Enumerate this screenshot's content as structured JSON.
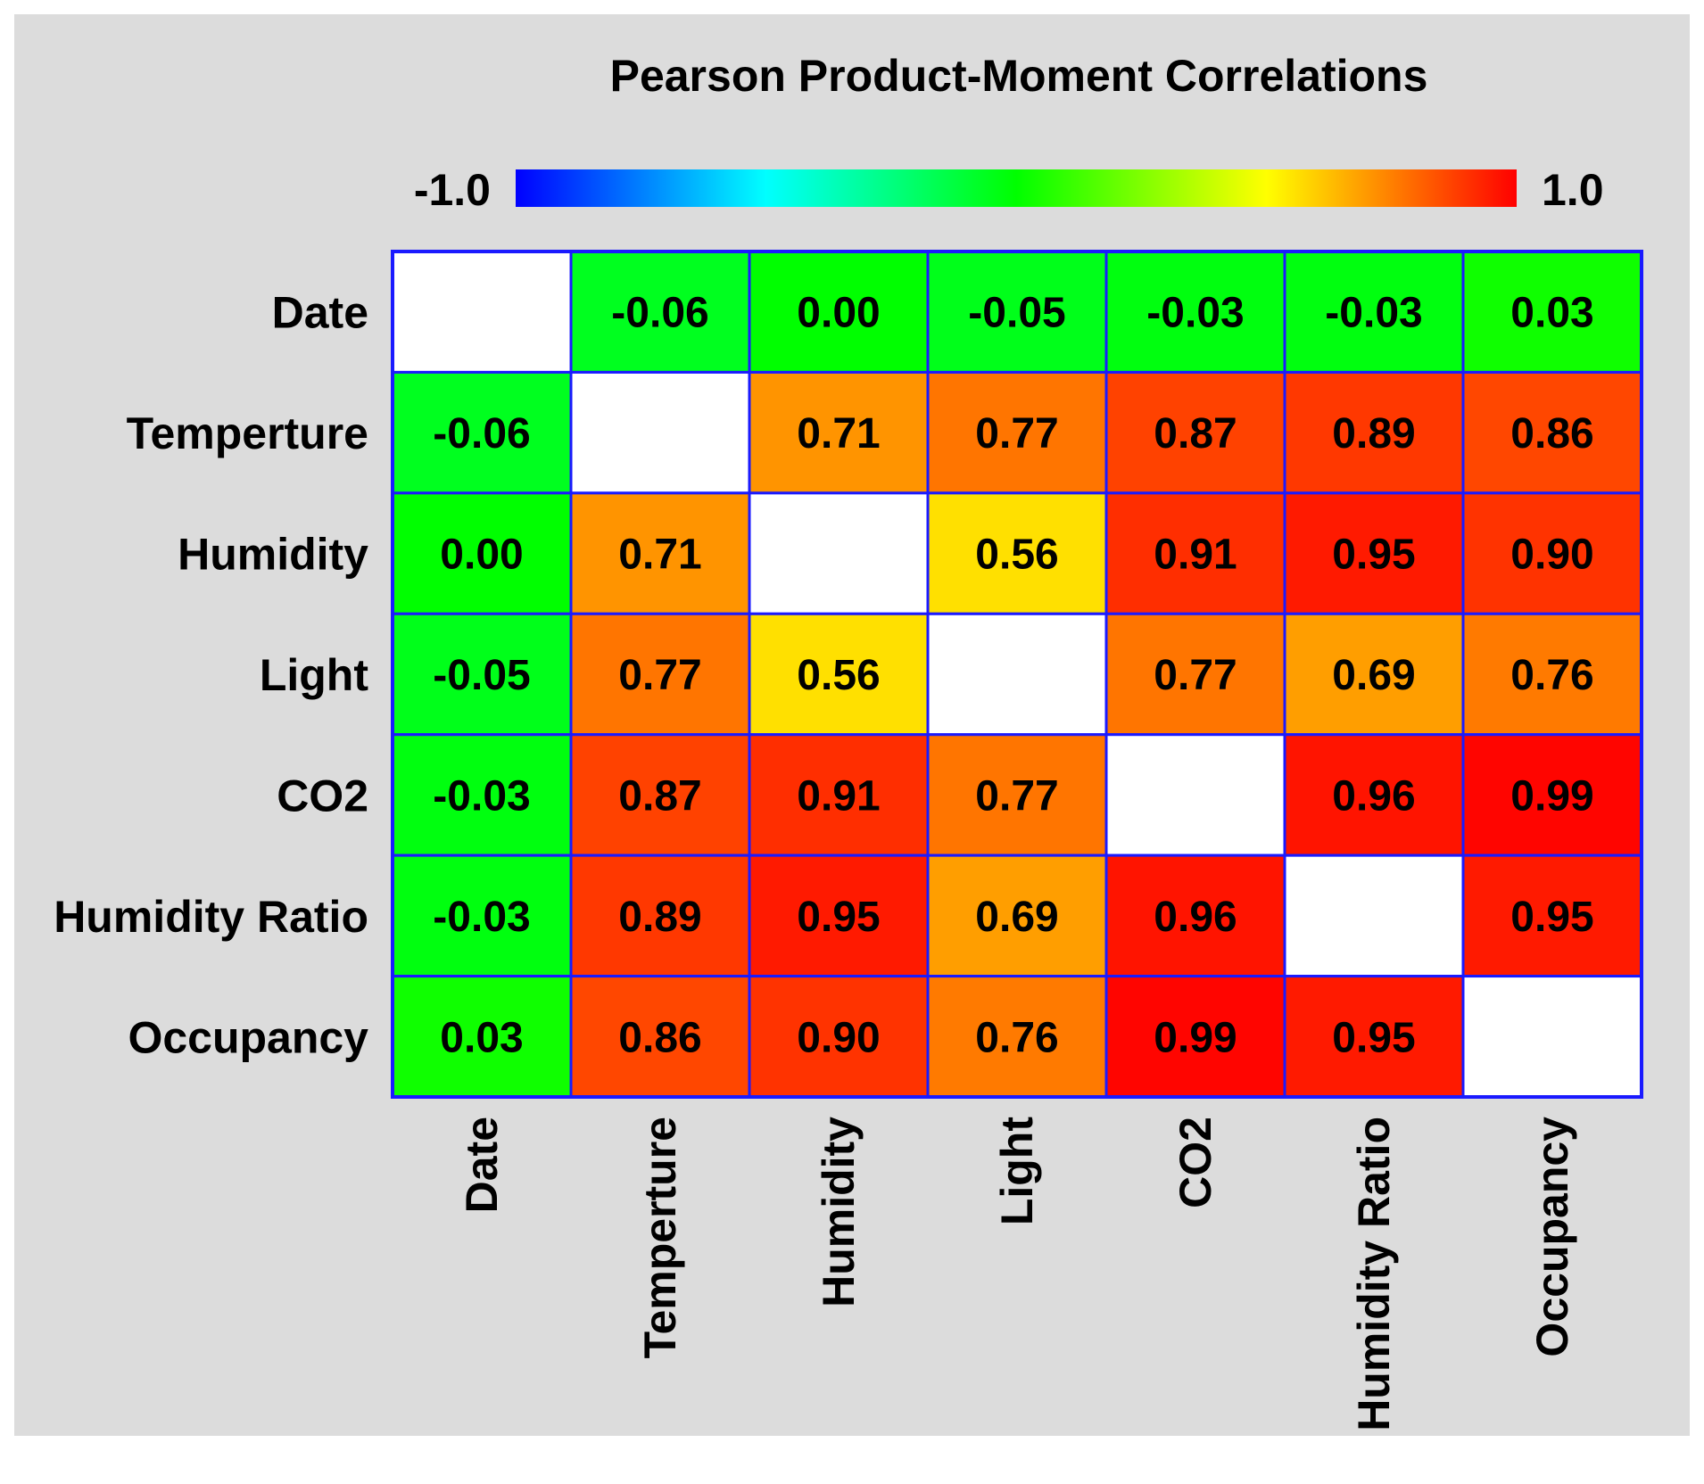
{
  "chart_data": {
    "type": "heatmap",
    "title": "Pearson Product-Moment Correlations",
    "colorbar": {
      "min_label": "-1.0",
      "max_label": "1.0",
      "min": -1.0,
      "max": 1.0,
      "stops": [
        {
          "value": -1.0,
          "color": "#0000ff"
        },
        {
          "value": -0.5,
          "color": "#00ffff"
        },
        {
          "value": 0.0,
          "color": "#00ff00"
        },
        {
          "value": 0.5,
          "color": "#ffff00"
        },
        {
          "value": 1.0,
          "color": "#ff0000"
        }
      ]
    },
    "row_labels": [
      "Date",
      "Temperture",
      "Humidity",
      "Light",
      "CO2",
      "Humidity Ratio",
      "Occupancy"
    ],
    "column_labels": [
      "Date",
      "Temperture",
      "Humidity",
      "Light",
      "CO2",
      "Humidity Ratio",
      "Occupancy"
    ],
    "values": [
      [
        null,
        -0.06,
        0.0,
        -0.05,
        -0.03,
        -0.03,
        0.03
      ],
      [
        -0.06,
        null,
        0.71,
        0.77,
        0.87,
        0.89,
        0.86
      ],
      [
        0.0,
        0.71,
        null,
        0.56,
        0.91,
        0.95,
        0.9
      ],
      [
        -0.05,
        0.77,
        0.56,
        null,
        0.77,
        0.69,
        0.76
      ],
      [
        -0.03,
        0.87,
        0.91,
        0.77,
        null,
        0.96,
        0.99
      ],
      [
        -0.03,
        0.89,
        0.95,
        0.69,
        0.96,
        null,
        0.95
      ],
      [
        0.03,
        0.86,
        0.9,
        0.76,
        0.99,
        0.95,
        null
      ]
    ],
    "value_labels": [
      [
        "",
        "-0.06",
        "0.00",
        "-0.05",
        "-0.03",
        "-0.03",
        "0.03"
      ],
      [
        "-0.06",
        "",
        "0.71",
        "0.77",
        "0.87",
        "0.89",
        "0.86"
      ],
      [
        "0.00",
        "0.71",
        "",
        "0.56",
        "0.91",
        "0.95",
        "0.90"
      ],
      [
        "-0.05",
        "0.77",
        "0.56",
        "",
        "0.77",
        "0.69",
        "0.76"
      ],
      [
        "-0.03",
        "0.87",
        "0.91",
        "0.77",
        "",
        "0.96",
        "0.99"
      ],
      [
        "-0.03",
        "0.89",
        "0.95",
        "0.69",
        "0.96",
        "",
        "0.95"
      ],
      [
        "0.03",
        "0.86",
        "0.90",
        "0.76",
        "0.99",
        "0.95",
        ""
      ]
    ],
    "diagonal_color": "#ffffff",
    "grid_line_color": "#1a1aff",
    "background_color": "#dcdcdc"
  }
}
